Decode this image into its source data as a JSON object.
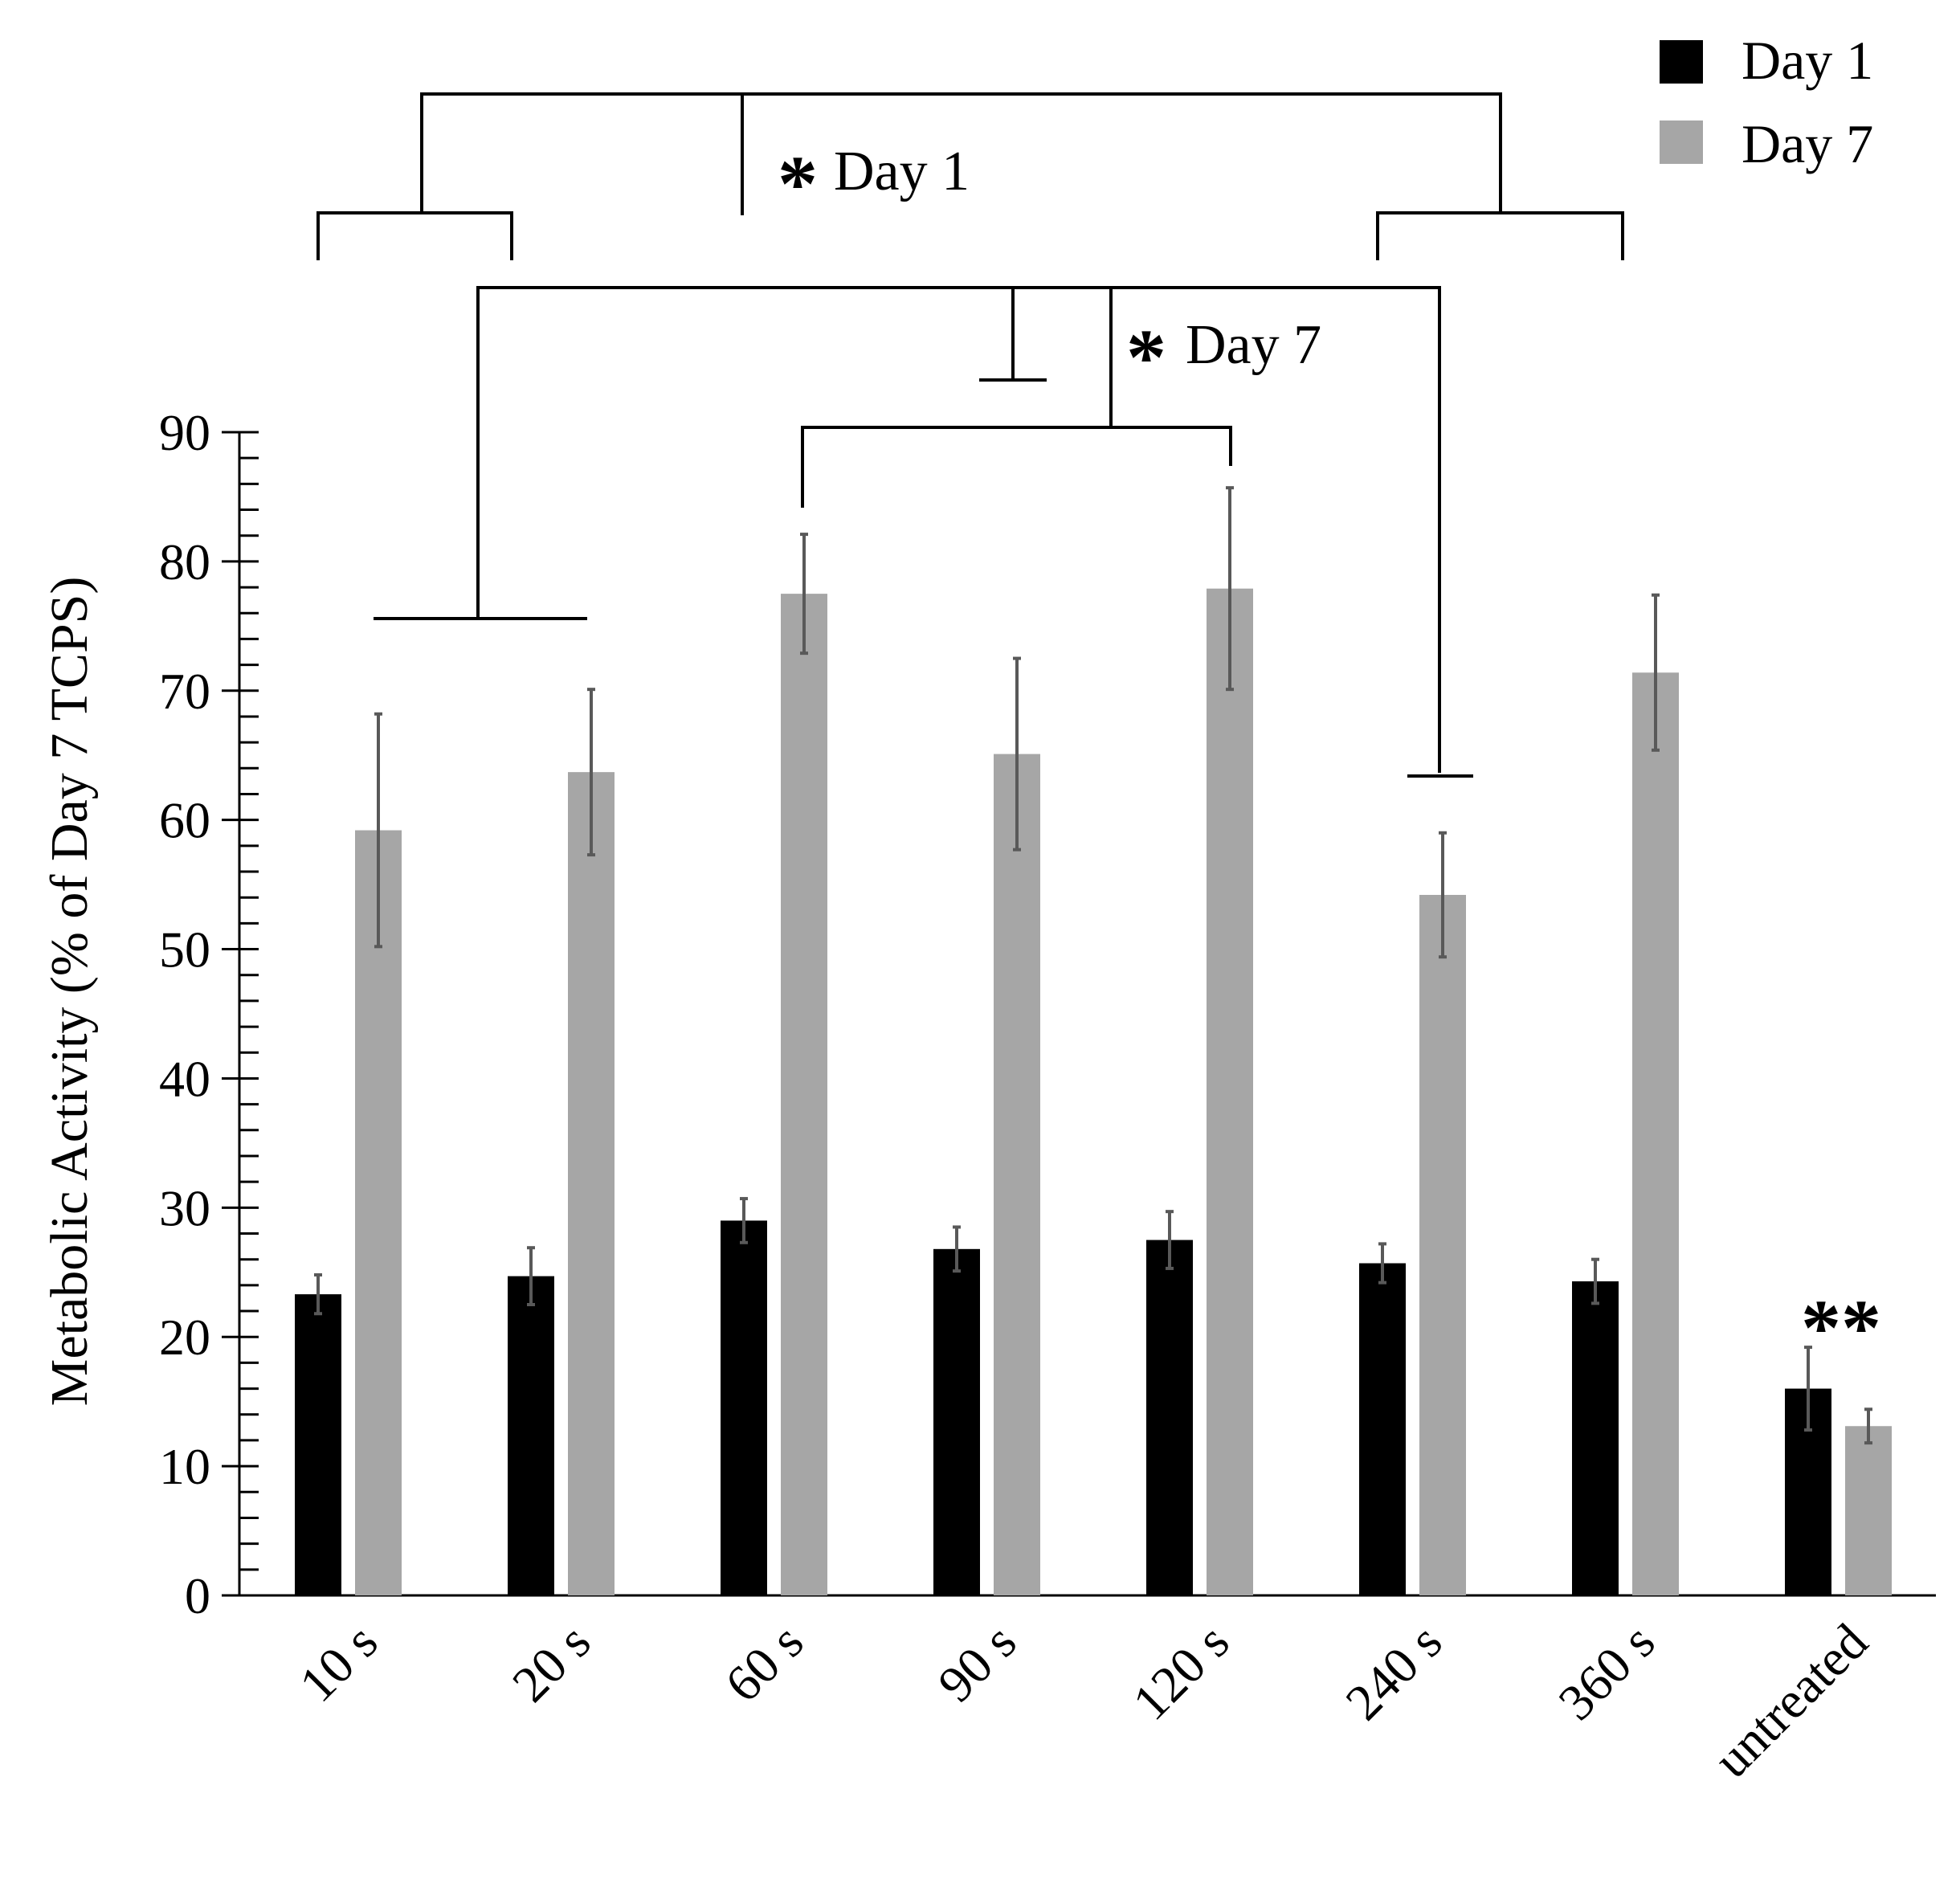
{
  "chart_data": {
    "type": "bar",
    "title": "",
    "xlabel": "",
    "ylabel": "Metabolic Activity (% of Day 7 TCPS)",
    "ylim": [
      0,
      90
    ],
    "yticks": [
      "0",
      "10",
      "20",
      "30",
      "40",
      "50",
      "60",
      "70",
      "80",
      "90"
    ],
    "categories": [
      "10 s",
      "20 s",
      "60 s",
      "90 s",
      "120 s",
      "240 s",
      "360 s",
      "untreated"
    ],
    "series": [
      {
        "name": "Day 1",
        "color": "#000000",
        "values": [
          23.3,
          24.7,
          29.0,
          26.8,
          27.5,
          25.7,
          24.3,
          16.0
        ],
        "errors": [
          1.5,
          2.2,
          1.7,
          1.7,
          2.2,
          1.5,
          1.7,
          3.2
        ]
      },
      {
        "name": "Day 7",
        "color": "#a6a6a6",
        "values": [
          59.2,
          63.7,
          77.5,
          65.1,
          77.9,
          54.2,
          71.4,
          13.1
        ],
        "errors": [
          9.0,
          6.4,
          4.6,
          7.4,
          7.8,
          4.8,
          6.0,
          1.3
        ]
      }
    ],
    "legend": {
      "position": "top-right",
      "entries": [
        "Day 1",
        "Day 7"
      ]
    },
    "annotations": {
      "sig_day1": {
        "star": "*",
        "label": "Day 1"
      },
      "sig_day7": {
        "star": "*",
        "label": "Day 7"
      },
      "untreated_marker": "**"
    }
  }
}
